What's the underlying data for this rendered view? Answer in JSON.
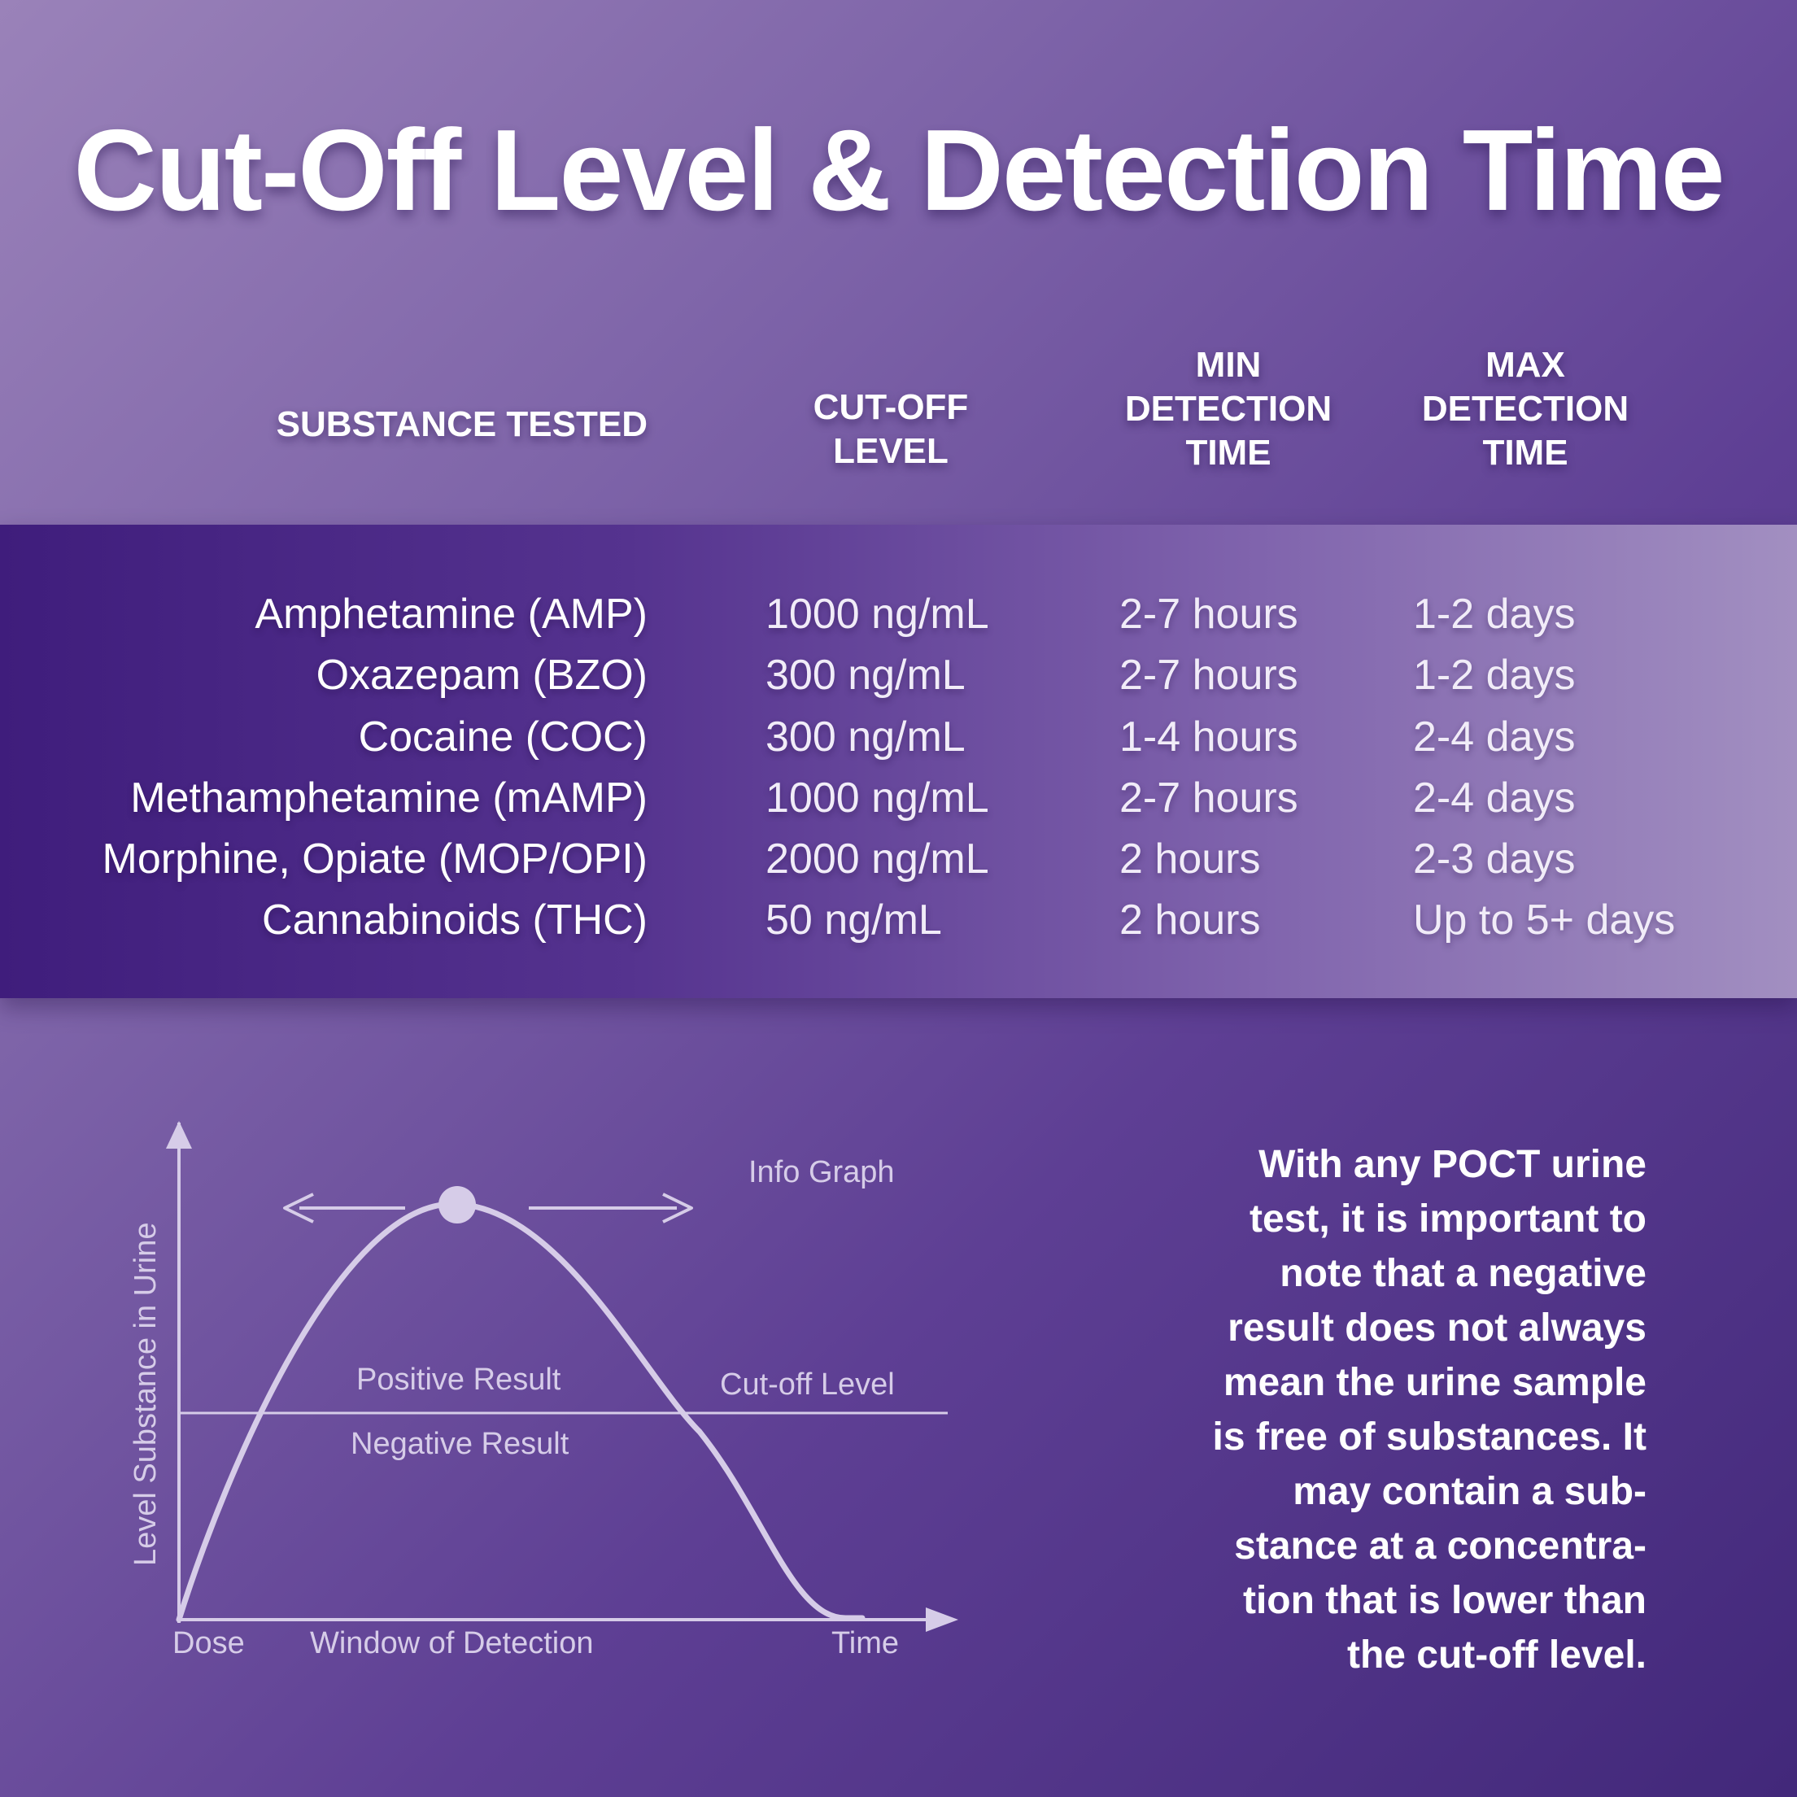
{
  "title": "Cut-Off Level & Detection Time",
  "headers": {
    "substance": "SUBSTANCE TESTED",
    "cutoff_line1": "CUT-OFF",
    "cutoff_line2": "LEVEL",
    "min_line1": "MIN",
    "min_line2": "DETECTION",
    "min_line3": "TIME",
    "max_line1": "MAX",
    "max_line2": "DETECTION",
    "max_line3": "TIME"
  },
  "rows": [
    {
      "substance": "Amphetamine (AMP)",
      "cutoff": "1000 ng/mL",
      "min": "2-7 hours",
      "max": "1-2 days"
    },
    {
      "substance": "Oxazepam (BZO)",
      "cutoff": "300 ng/mL",
      "min": "2-7 hours",
      "max": "1-2 days"
    },
    {
      "substance": "Cocaine (COC)",
      "cutoff": "300 ng/mL",
      "min": "1-4 hours",
      "max": "2-4 days"
    },
    {
      "substance": "Methamphetamine (mAMP)",
      "cutoff": "1000 ng/mL",
      "min": "2-7 hours",
      "max": "2-4 days"
    },
    {
      "substance": "Morphine, Opiate (MOP/OPI)",
      "cutoff": "2000 ng/mL",
      "min": "2 hours",
      "max": "2-3 days"
    },
    {
      "substance": "Cannabinoids (THC)",
      "cutoff": "50 ng/mL",
      "min": "2 hours",
      "max": "Up to 5+ days"
    }
  ],
  "graph": {
    "y_axis_label": "Level Substance in Urine",
    "info_label": "Info Graph",
    "positive_label": "Positive Result",
    "negative_label": "Negative Result",
    "cutoff_label": "Cut-off Level",
    "dose_label": "Dose",
    "window_label": "Window of Detection",
    "time_label": "Time"
  },
  "note": {
    "line1": "With any POCT urine",
    "line2": "test, it is important to",
    "line3": "note that a negative",
    "line4": "result does not always",
    "line5": "mean the urine sample",
    "line6": "is free of substances. It",
    "line7": "may contain a sub-",
    "line8": "stance at a concentra-",
    "line9": "tion that is lower than",
    "line10": "the cut-off level."
  },
  "colors": {
    "background_light": "#9a82b9",
    "background_dark": "#42287a",
    "band_dark": "#3f1d7c",
    "band_light": "#a28fc1",
    "graph_line": "#d6cce8"
  }
}
